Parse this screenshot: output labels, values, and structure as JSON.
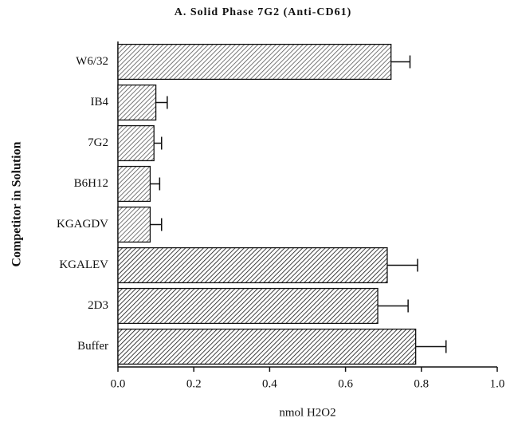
{
  "chart_data": {
    "type": "hbar",
    "title": "A. Solid Phase 7G2 (Anti-CD61)",
    "xlabel": "nmol H2O2",
    "ylabel": "Competitor in Solution",
    "categories": [
      "W6/32",
      "IB4",
      "7G2",
      "B6H12",
      "KGAGDV",
      "KGALEV",
      "2D3",
      "Buffer"
    ],
    "values": [
      0.72,
      0.1,
      0.095,
      0.085,
      0.085,
      0.71,
      0.685,
      0.785
    ],
    "errors": [
      0.05,
      0.03,
      0.02,
      0.025,
      0.03,
      0.08,
      0.08,
      0.08
    ],
    "colors": [
      "#555555",
      "#555555",
      "#555555",
      "#555555",
      "#555555",
      "#111111",
      "#111111",
      "#111111"
    ],
    "xlim": [
      0,
      1
    ],
    "xticks": [
      {
        "value": 0,
        "label": "0.0"
      },
      0.2,
      0.4,
      0.6,
      0.8,
      {
        "value": 1,
        "label": "1.0"
      }
    ]
  }
}
